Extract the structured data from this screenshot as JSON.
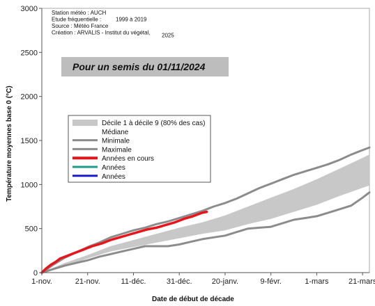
{
  "chart_data": {
    "type": "line",
    "xlabel": "Date de début de décade",
    "ylabel": "Température moyennes base 0 (°C)",
    "ylim": [
      0,
      3000
    ],
    "y_ticks": [
      0,
      500,
      1000,
      1500,
      2000,
      2500,
      3000
    ],
    "x_ticks": [
      "1-nov.",
      "21-nov.",
      "11-déc.",
      "31-déc.",
      "20-janv.",
      "9-févr.",
      "1-mars",
      "21-mars"
    ],
    "x_range_days": [
      0,
      143
    ],
    "grid": false,
    "legend_placement": "middle-left",
    "info_lines": [
      {
        "text": "Station météo :  AUCH",
        "extra": ""
      },
      {
        "text": "Etude fréquentielle :",
        "extra": "1999   à    2019"
      },
      {
        "text": "Source : Météo France",
        "extra": ""
      },
      {
        "text": "Création : ARVALIS - Institut du végétal,",
        "extra": "2025"
      }
    ],
    "banner": "Pour un semis du    01/11/2024",
    "legend": [
      {
        "label": "Décile 1 à décile 9 (80% des cas)",
        "color": "#c8c8c8",
        "kind": "band"
      },
      {
        "label": "Médiane",
        "color": "",
        "kind": "none"
      },
      {
        "label": "Minimale",
        "color": "#8c8c8c",
        "kind": "line"
      },
      {
        "label": "Maximale",
        "color": "#8c8c8c",
        "kind": "line"
      },
      {
        "label": "Années en cours",
        "color": "#e8141a",
        "kind": "line"
      },
      {
        "label": "Années",
        "color": "#1e9a8a",
        "kind": "line"
      },
      {
        "label": "Années",
        "color": "#1a1acc",
        "kind": "line"
      }
    ],
    "series": [
      {
        "name": "Décile 1 à décile 9 (80% des cas)",
        "kind": "band",
        "color": "#c8c8c8",
        "x": [
          0,
          10,
          20,
          30,
          40,
          50,
          60,
          70,
          80,
          90,
          100,
          110,
          120,
          130,
          143
        ],
        "lower": [
          0,
          70,
          160,
          240,
          290,
          340,
          390,
          440,
          480,
          550,
          610,
          690,
          770,
          870,
          990
        ],
        "upper": [
          0,
          110,
          200,
          300,
          370,
          440,
          510,
          570,
          650,
          750,
          850,
          950,
          1060,
          1180,
          1340
        ]
      },
      {
        "name": "Minimale",
        "kind": "line",
        "color": "#8c8c8c",
        "x": [
          0,
          5,
          10,
          15,
          20,
          25,
          30,
          35,
          40,
          45,
          50,
          55,
          60,
          65,
          70,
          75,
          80,
          85,
          90,
          95,
          100,
          105,
          110,
          115,
          120,
          125,
          130,
          135,
          140,
          143
        ],
        "y": [
          0,
          40,
          80,
          110,
          140,
          180,
          210,
          240,
          270,
          300,
          300,
          300,
          320,
          350,
          380,
          400,
          420,
          460,
          500,
          510,
          520,
          560,
          600,
          620,
          640,
          680,
          720,
          760,
          850,
          910
        ]
      },
      {
        "name": "Maximale",
        "kind": "line",
        "color": "#8c8c8c",
        "x": [
          0,
          5,
          10,
          15,
          20,
          25,
          30,
          35,
          40,
          45,
          50,
          55,
          60,
          65,
          70,
          75,
          80,
          85,
          90,
          95,
          100,
          105,
          110,
          115,
          120,
          125,
          130,
          135,
          140,
          143
        ],
        "y": [
          0,
          90,
          170,
          230,
          290,
          340,
          400,
          440,
          480,
          510,
          550,
          580,
          620,
          660,
          700,
          750,
          790,
          840,
          900,
          960,
          1010,
          1060,
          1110,
          1150,
          1190,
          1230,
          1280,
          1340,
          1390,
          1420
        ]
      },
      {
        "name": "Années en cours",
        "kind": "line",
        "color": "#e8141a",
        "x": [
          0,
          2,
          4,
          6,
          8,
          10,
          14,
          18,
          22,
          26,
          30,
          34,
          38,
          42,
          46,
          50,
          54,
          58,
          62,
          66,
          70,
          72
        ],
        "y": [
          0,
          50,
          90,
          120,
          160,
          180,
          220,
          260,
          300,
          330,
          370,
          400,
          430,
          460,
          490,
          510,
          540,
          570,
          610,
          640,
          680,
          690
        ]
      }
    ]
  }
}
